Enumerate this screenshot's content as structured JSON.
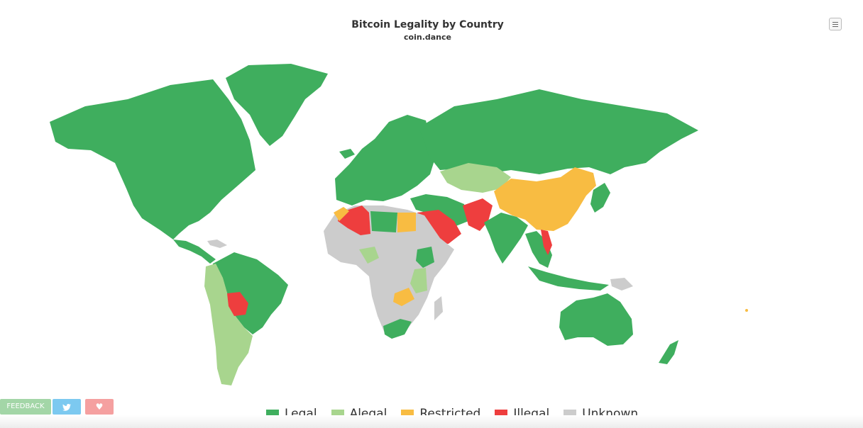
{
  "title": "Bitcoin Legality by Country",
  "subtitle": "coin.dance",
  "menu_icon": "hamburger-icon",
  "legend": [
    {
      "label": "Legal",
      "color": "#3fae5e"
    },
    {
      "label": "Alegal",
      "color": "#a8d58e"
    },
    {
      "label": "Restricted",
      "color": "#f8bc42"
    },
    {
      "label": "Illegal",
      "color": "#ee3e3e"
    },
    {
      "label": "Unknown",
      "color": "#cccccc"
    }
  ],
  "buttons": {
    "feedback": "FEEDBACK",
    "twitter_icon": "twitter-icon",
    "heart_icon": "heart-icon"
  }
}
